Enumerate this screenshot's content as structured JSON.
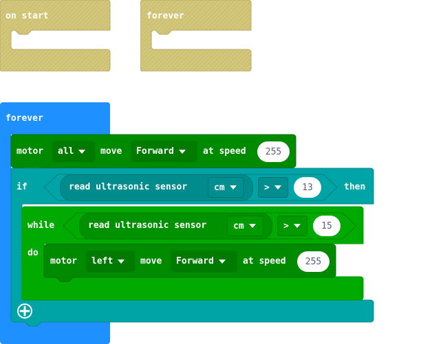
{
  "placeholders": [
    {
      "label": "on start"
    },
    {
      "label": "forever"
    }
  ],
  "main": {
    "forever_label": "forever",
    "motor1": {
      "motor": "motor",
      "which": "all",
      "move": "move",
      "direction": "Forward",
      "at_speed": "at speed",
      "speed": "255"
    },
    "if_block": {
      "if": "if",
      "read": "read ultrasonic sensor",
      "unit": "cm",
      "op": ">",
      "value": "13",
      "then": "then"
    },
    "while_block": {
      "while": "while",
      "read": "read ultrasonic sensor",
      "unit": "cm",
      "op": ">",
      "value": "15",
      "do": "do"
    },
    "motor2": {
      "motor": "motor",
      "which": "left",
      "move": "move",
      "direction": "Forward",
      "at_speed": "at speed",
      "speed": "255"
    },
    "add_icon": "plus-circle-icon"
  },
  "colors": {
    "forever_blue": "#1e90ff",
    "motor_green": "#008a00",
    "logic_teal": "#00a4a6",
    "loop_green": "#00aa00",
    "placeholder_yellow": "#d6c96d"
  }
}
